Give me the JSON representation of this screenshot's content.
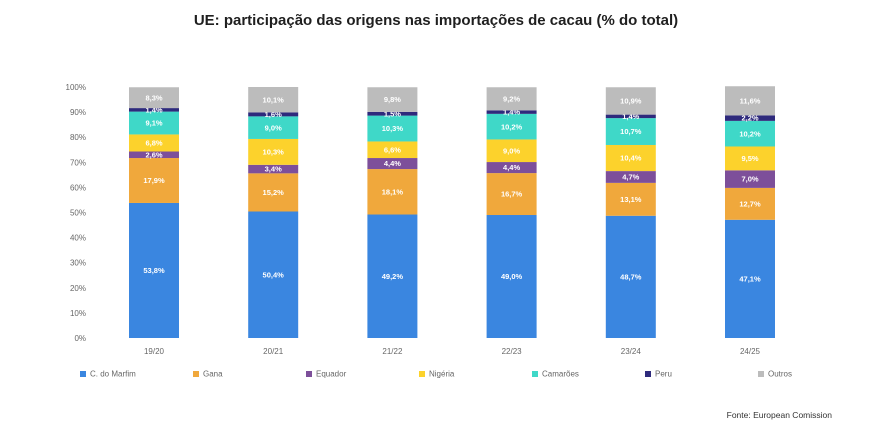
{
  "chart_data": {
    "type": "bar",
    "stacked": true,
    "title": "UE: participação das origens nas importações de cacau (% do total)",
    "categories": [
      "19/20",
      "20/21",
      "21/22",
      "22/23",
      "23/24",
      "24/25"
    ],
    "y_ticks": [
      "0%",
      "10%",
      "20%",
      "30%",
      "40%",
      "50%",
      "60%",
      "70%",
      "80%",
      "90%",
      "100%"
    ],
    "ylim": [
      0,
      100
    ],
    "grid": false,
    "legend_position": "bottom",
    "series": [
      {
        "name": "C. do Marfim",
        "color": "#3a86e0",
        "values": [
          53.8,
          50.4,
          49.2,
          49.0,
          48.7,
          47.1
        ],
        "labels": [
          "53,8%",
          "50,4%",
          "49,2%",
          "49,0%",
          "48,7%",
          "47,1%"
        ]
      },
      {
        "name": "Gana",
        "color": "#f0a83c",
        "values": [
          17.9,
          15.2,
          18.1,
          16.7,
          13.1,
          12.7
        ],
        "labels": [
          "17,9%",
          "15,2%",
          "18,1%",
          "16,7%",
          "13,1%",
          "12,7%"
        ]
      },
      {
        "name": "Equador",
        "color": "#7d4f9a",
        "values": [
          2.6,
          3.4,
          4.4,
          4.4,
          4.7,
          7.0
        ],
        "labels": [
          "2,6%",
          "3,4%",
          "4,4%",
          "4,4%",
          "4,7%",
          "7,0%"
        ]
      },
      {
        "name": "Nigéria",
        "color": "#fcd22c",
        "values": [
          6.8,
          10.3,
          6.6,
          9.0,
          10.4,
          9.5
        ],
        "labels": [
          "6,8%",
          "10,3%",
          "6,6%",
          "9,0%",
          "10,4%",
          "9,5%"
        ]
      },
      {
        "name": "Camarões",
        "color": "#3fd8c8",
        "values": [
          9.1,
          9.0,
          10.3,
          10.2,
          10.7,
          10.2
        ],
        "labels": [
          "9,1%",
          "9,0%",
          "10,3%",
          "10,2%",
          "10,7%",
          "10,2%"
        ]
      },
      {
        "name": "Peru",
        "color": "#2e2a7c",
        "values": [
          1.4,
          1.6,
          1.5,
          1.4,
          1.4,
          2.2
        ],
        "labels": [
          "1,4%",
          "1,6%",
          "1,5%",
          "1,4%",
          "1,4%",
          "2,2%"
        ]
      },
      {
        "name": "Outros",
        "color": "#bcbcbc",
        "values": [
          8.3,
          10.1,
          9.8,
          9.2,
          10.9,
          11.6
        ],
        "labels": [
          "8,3%",
          "10,1%",
          "9,8%",
          "9,2%",
          "10,9%",
          "11,6%"
        ]
      }
    ]
  },
  "source_note": "Fonte:  European Comission"
}
